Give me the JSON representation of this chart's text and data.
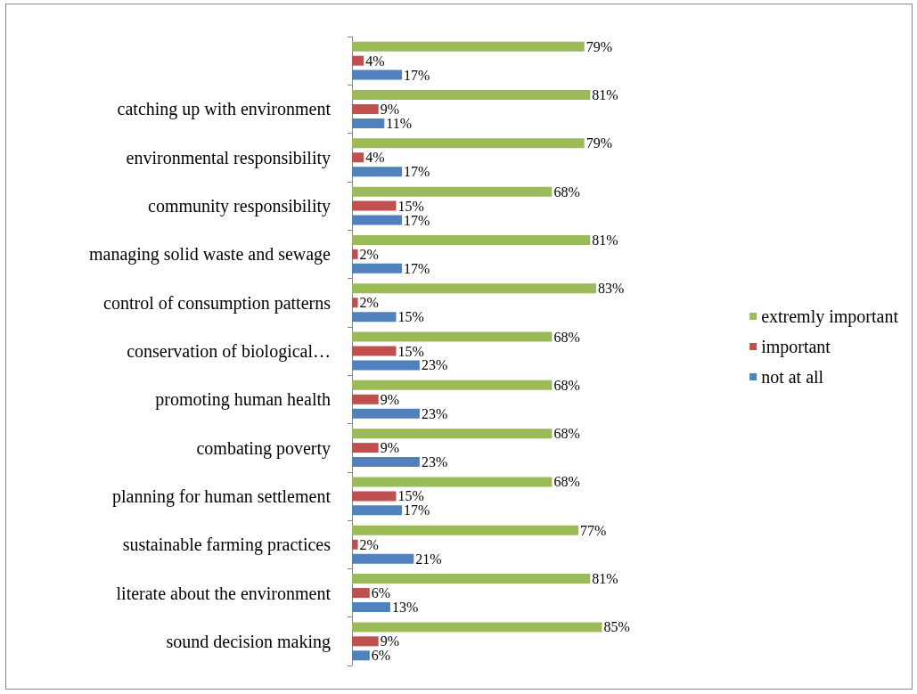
{
  "chart_data": {
    "type": "bar",
    "orientation": "horizontal",
    "categories": [
      null,
      "catching up with environment",
      "environmental responsibility",
      "community responsibility",
      "managing solid waste and sewage",
      "control of consumption patterns",
      "conservation of biological…",
      "promoting human health",
      "combating poverty",
      "planning for human settlement",
      "sustainable farming practices",
      "literate about the environment",
      "sound decision making"
    ],
    "series": [
      {
        "name": "extremly important",
        "color": "#9bbb59",
        "values": [
          79,
          81,
          79,
          68,
          81,
          83,
          68,
          68,
          68,
          68,
          77,
          81,
          85
        ],
        "value_labels": [
          "79%",
          "81%",
          "79%",
          "68%",
          "81%",
          "83%",
          "68%",
          "68%",
          "68%",
          "68%",
          "77%",
          "81%",
          "85%"
        ]
      },
      {
        "name": "important",
        "color": "#c0504d",
        "values": [
          4,
          9,
          4,
          15,
          2,
          2,
          15,
          9,
          9,
          15,
          2,
          6,
          9
        ],
        "value_labels": [
          "4%",
          "9%",
          "4%",
          "15%",
          "2%",
          "2%",
          "15%",
          "9%",
          "9%",
          "15%",
          "2%",
          "6%",
          "9%"
        ]
      },
      {
        "name": "not at all",
        "color": "#4f81bd",
        "values": [
          17,
          11,
          17,
          17,
          17,
          15,
          23,
          23,
          23,
          17,
          21,
          13,
          6
        ],
        "value_labels": [
          "17%",
          "11%",
          "17%",
          "17%",
          "17%",
          "15%",
          "23%",
          "23%",
          "23%",
          "17%",
          "21%",
          "13%",
          "6%"
        ]
      }
    ],
    "legend": "right",
    "tick_labels": "y"
  }
}
